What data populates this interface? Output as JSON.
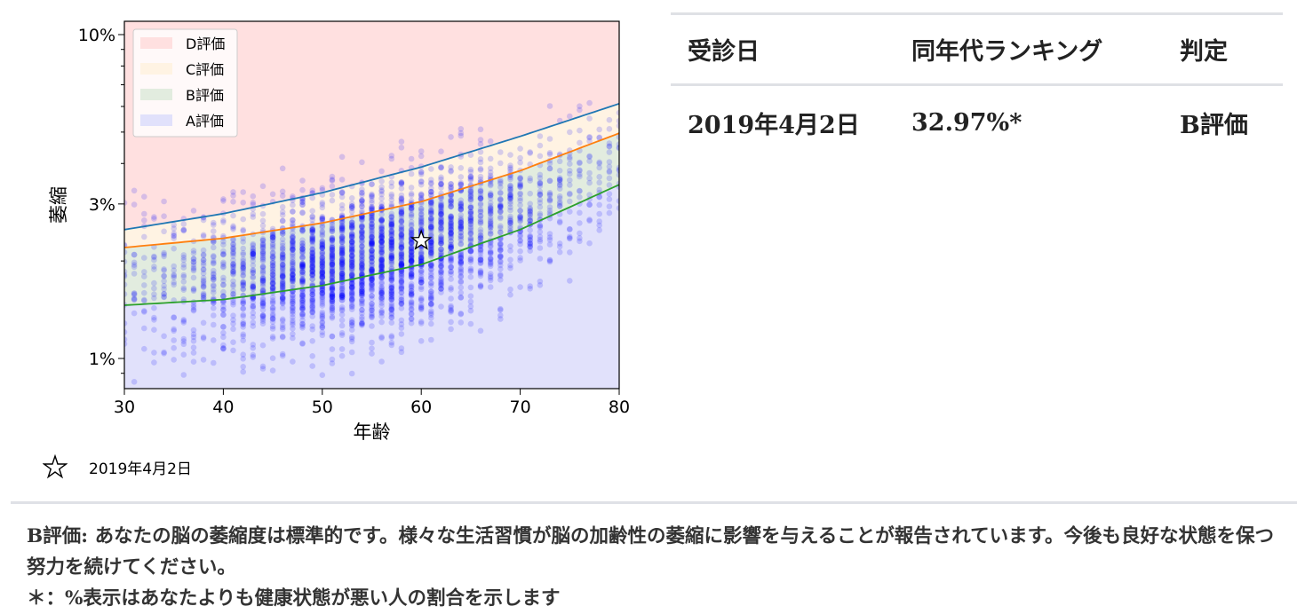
{
  "chart_data": {
    "type": "scatter",
    "title": "",
    "xlabel": "年齢",
    "ylabel": "萎縮",
    "xlim": [
      30,
      80
    ],
    "ylim_percent": [
      0.8,
      11.5
    ],
    "yscale": "log",
    "x_ticks": [
      30,
      40,
      50,
      60,
      70,
      80
    ],
    "x_tick_labels": [
      "30",
      "40",
      "50",
      "60",
      "70",
      "80"
    ],
    "y_ticks": [
      1,
      3,
      10
    ],
    "y_tick_labels": [
      "1%",
      "3%",
      "10%"
    ],
    "grid": false,
    "legend_position": "upper left",
    "legend": [
      {
        "label": "D評価",
        "color": "#ffe0e0"
      },
      {
        "label": "C評価",
        "color": "#fff3e3"
      },
      {
        "label": "B評価",
        "color": "#e2ecdf"
      },
      {
        "label": "A評価",
        "color": "#e1e1fb"
      }
    ],
    "band_colors": {
      "D": "#ffe0e0",
      "C": "#fff3e3",
      "B": "#e2ecdf",
      "A": "#e1e1fb"
    },
    "scatter_color": "#0000ff",
    "series": [
      {
        "name": "D/C boundary",
        "color": "#1f77b4",
        "x": [
          30,
          40,
          50,
          60,
          70,
          80
        ],
        "y_percent": [
          2.5,
          2.8,
          3.25,
          3.9,
          4.85,
          6.12
        ]
      },
      {
        "name": "C/B boundary",
        "color": "#ff7f0e",
        "x": [
          30,
          40,
          50,
          60,
          70,
          80
        ],
        "y_percent": [
          2.2,
          2.35,
          2.62,
          3.05,
          3.8,
          4.96
        ]
      },
      {
        "name": "B/A boundary",
        "color": "#2ca02c",
        "x": [
          30,
          40,
          50,
          60,
          70,
          80
        ],
        "y_percent": [
          1.46,
          1.52,
          1.68,
          1.95,
          2.5,
          3.44
        ]
      }
    ],
    "highlight_point": {
      "label": "2019年4月2日",
      "marker": "star",
      "x": 60,
      "y_percent": 2.31
    },
    "scatter_summary": "Population points at integer ages 30–80, mostly between ~0.9% and ~4%, rising with age"
  },
  "star_legend": {
    "icon": "star-outline-icon",
    "label": "2019年4月2日"
  },
  "table": {
    "headers": [
      "受診日",
      "同年代ランキング",
      "判定"
    ],
    "rows": [
      {
        "date": "2019年4月2日",
        "ranking": "32.97%*",
        "grade": "B評価"
      }
    ]
  },
  "comment": {
    "line1": "B評価: あなたの脳の萎縮度は標準的です。様々な生活習慣が脳の加齢性の萎縮に影響を与えることが報告されています。今後も良好な状態を保つ努力を続けてください。",
    "footnote": "＊：%表示はあなたよりも健康状態が悪い人の割合を示します"
  }
}
